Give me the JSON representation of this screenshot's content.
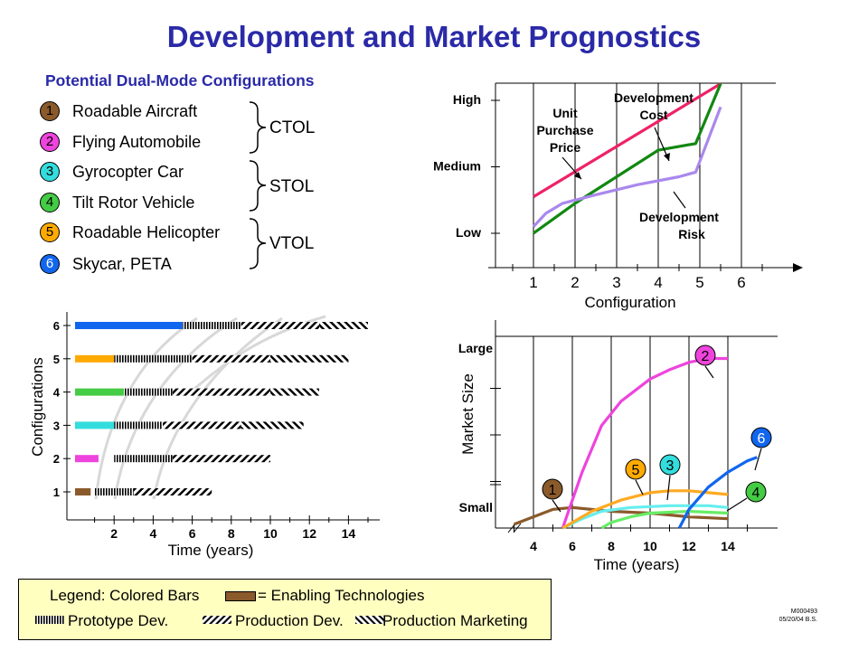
{
  "title": "Development and Market Prognostics",
  "configurations_heading": "Potential Dual-Mode Configurations",
  "configurations": [
    {
      "num": "1",
      "name": "Roadable Aircraft",
      "color": "#8b5a2b"
    },
    {
      "num": "2",
      "name": "Flying Automobile",
      "color": "#ee44dd"
    },
    {
      "num": "3",
      "name": "Gyrocopter Car",
      "color": "#33dddd"
    },
    {
      "num": "4",
      "name": "Tilt Rotor Vehicle",
      "color": "#44cc44"
    },
    {
      "num": "5",
      "name": "Roadable Helicopter",
      "color": "#ffaa00"
    },
    {
      "num": "6",
      "name": "Skycar, PETA",
      "color": "#1166ee"
    }
  ],
  "modes": [
    "CTOL",
    "STOL",
    "VTOL"
  ],
  "legend": {
    "line1_prefix": "Legend:  Colored Bars",
    "line1_suffix": "= Enabling Technologies",
    "prototype": "Prototype Dev.",
    "production": "Production Dev.",
    "marketing": "Production Marketing"
  },
  "footnote": {
    "code": "M000493",
    "date": "05/20/04  B.S."
  },
  "chart_data": [
    {
      "type": "line",
      "id": "risk-cost-price",
      "xlabel": "Configuration",
      "x_ticks": [
        "1",
        "2",
        "3",
        "4",
        "5",
        "6"
      ],
      "y_ticks": [
        "Low",
        "Medium",
        "High"
      ],
      "series": [
        {
          "name": "Unit Purchase Price",
          "color": "#ee2266",
          "points": [
            [
              1,
              0.55
            ],
            [
              5.5,
              2.25
            ]
          ]
        },
        {
          "name": "Development Cost",
          "color": "#118811",
          "points": [
            [
              1,
              0.0
            ],
            [
              2,
              0.45
            ],
            [
              3,
              0.85
            ],
            [
              4,
              1.25
            ],
            [
              4.9,
              1.35
            ],
            [
              5.5,
              2.25
            ]
          ]
        },
        {
          "name": "Development Risk",
          "color": "#aa88ee",
          "points": [
            [
              1,
              0.1
            ],
            [
              1.3,
              0.3
            ],
            [
              1.7,
              0.45
            ],
            [
              2.5,
              0.58
            ],
            [
              3.5,
              0.73
            ],
            [
              4.5,
              0.85
            ],
            [
              4.9,
              0.92
            ],
            [
              5.5,
              1.9
            ]
          ]
        }
      ]
    },
    {
      "type": "bar",
      "id": "development-timeline",
      "xlabel": "Time (years)",
      "ylabel": "Configurations",
      "x_ticks": [
        "2",
        "4",
        "6",
        "8",
        "10",
        "12",
        "14"
      ],
      "xlim": [
        -0.5,
        16
      ],
      "categories": [
        "1",
        "2",
        "3",
        "4",
        "5",
        "6"
      ],
      "rows": [
        {
          "config": "1",
          "enabling": [
            0,
            0.8
          ],
          "prototype": [
            1,
            3
          ],
          "production": [
            3,
            7
          ],
          "marketing": null
        },
        {
          "config": "2",
          "enabling": [
            0,
            1.2
          ],
          "prototype": [
            2,
            5
          ],
          "production": [
            5,
            10
          ],
          "marketing": null
        },
        {
          "config": "3",
          "enabling": [
            0,
            2
          ],
          "prototype": [
            2,
            4.5
          ],
          "production": [
            4.5,
            8.5
          ],
          "marketing": [
            8.5,
            11.7
          ]
        },
        {
          "config": "4",
          "enabling": [
            0,
            2.5
          ],
          "prototype": [
            2.5,
            5
          ],
          "production": [
            5,
            10
          ],
          "marketing": [
            10,
            12.5
          ]
        },
        {
          "config": "5",
          "enabling": [
            0,
            2
          ],
          "prototype": [
            2,
            6
          ],
          "production": [
            6,
            10
          ],
          "marketing": [
            10,
            14
          ]
        },
        {
          "config": "6",
          "enabling": [
            0,
            5.5
          ],
          "prototype": [
            5.5,
            8.5
          ],
          "production": [
            8.5,
            12.5
          ],
          "marketing": [
            12.5,
            15
          ]
        }
      ]
    },
    {
      "type": "line",
      "id": "market-size",
      "xlabel": "Time (years)",
      "ylabel": "Market Size",
      "x_ticks": [
        "4",
        "6",
        "8",
        "10",
        "12",
        "14"
      ],
      "xlim": [
        3,
        17
      ],
      "y_ticks": [
        "Small",
        "Large"
      ],
      "ylim": [
        0,
        1
      ],
      "series": [
        {
          "name": "1",
          "color": "#8b5a2b",
          "points": [
            [
              3,
              0.02
            ],
            [
              5,
              0.1
            ],
            [
              6,
              0.11
            ],
            [
              8,
              0.09
            ],
            [
              10,
              0.08
            ],
            [
              12,
              0.06
            ],
            [
              14,
              0.05
            ]
          ]
        },
        {
          "name": "2",
          "color": "#ee44dd",
          "points": [
            [
              5.5,
              0.0
            ],
            [
              6.5,
              0.3
            ],
            [
              7.5,
              0.55
            ],
            [
              8.5,
              0.68
            ],
            [
              10,
              0.8
            ],
            [
              11,
              0.85
            ],
            [
              12,
              0.89
            ],
            [
              13,
              0.91
            ],
            [
              14,
              0.91
            ]
          ]
        },
        {
          "name": "3",
          "color": "#66eeee",
          "points": [
            [
              5.5,
              0.0
            ],
            [
              6.5,
              0.05
            ],
            [
              7.5,
              0.09
            ],
            [
              9,
              0.11
            ],
            [
              11,
              0.12
            ],
            [
              13,
              0.12
            ],
            [
              14,
              0.11
            ]
          ]
        },
        {
          "name": "4",
          "color": "#66ee66",
          "points": [
            [
              7.5,
              0.0
            ],
            [
              8,
              0.03
            ],
            [
              9,
              0.06
            ],
            [
              10,
              0.08
            ],
            [
              12,
              0.09
            ],
            [
              14,
              0.08
            ]
          ]
        },
        {
          "name": "5",
          "color": "#ffaa22",
          "points": [
            [
              5.5,
              0.0
            ],
            [
              7,
              0.09
            ],
            [
              8.5,
              0.15
            ],
            [
              10,
              0.19
            ],
            [
              11,
              0.2
            ],
            [
              12,
              0.2
            ],
            [
              13,
              0.19
            ],
            [
              14,
              0.18
            ]
          ]
        },
        {
          "name": "6",
          "color": "#1166ee",
          "points": [
            [
              11.5,
              0.0
            ],
            [
              12,
              0.1
            ],
            [
              13,
              0.22
            ],
            [
              14,
              0.3
            ],
            [
              15,
              0.36
            ],
            [
              15.5,
              0.38
            ]
          ]
        }
      ]
    }
  ]
}
